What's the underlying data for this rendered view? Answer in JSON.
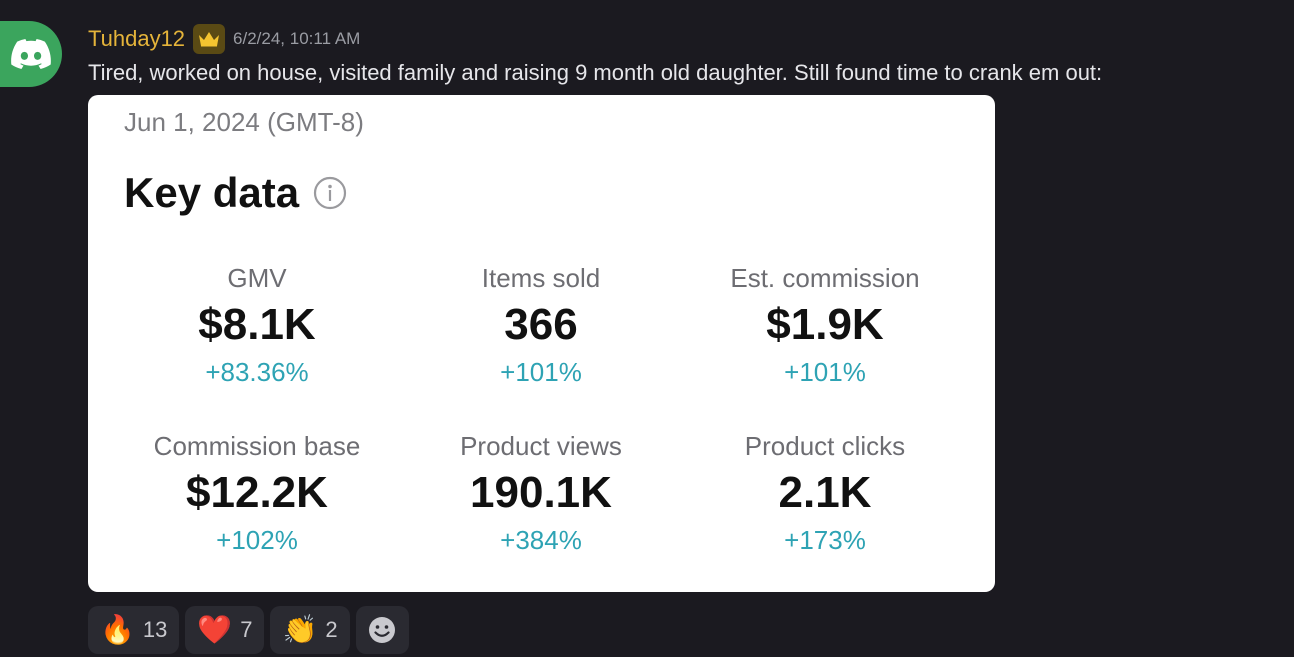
{
  "message": {
    "avatar_icon": "discord-logo-icon",
    "username": "Tuhday12",
    "role_icon": "crown-icon",
    "timestamp": "6/2/24, 10:11 AM",
    "text": "Tired, worked on house, visited family and raising 9 month old daughter. Still found time to crank em out:"
  },
  "card": {
    "date": "Jun 1, 2024 (GMT-8)",
    "title": "Key data",
    "info_icon": "info-icon",
    "metrics": [
      {
        "label": "GMV",
        "value": "$8.1K",
        "delta": "+83.36%"
      },
      {
        "label": "Items sold",
        "value": "366",
        "delta": "+101%"
      },
      {
        "label": "Est. commission",
        "value": "$1.9K",
        "delta": "+101%"
      },
      {
        "label": "Commission base",
        "value": "$12.2K",
        "delta": "+102%"
      },
      {
        "label": "Product views",
        "value": "190.1K",
        "delta": "+384%"
      },
      {
        "label": "Product clicks",
        "value": "2.1K",
        "delta": "+173%"
      }
    ],
    "colors": {
      "delta": "#2ea3b4"
    }
  },
  "reactions": [
    {
      "emoji": "🔥",
      "icon": "fire-emoji",
      "count": "13"
    },
    {
      "emoji": "❤️",
      "icon": "heart-emoji",
      "count": "7"
    },
    {
      "emoji": "👏",
      "icon": "clap-emoji",
      "count": "2"
    }
  ],
  "add_reaction_icon": "smiley-add-reaction-icon",
  "colors": {
    "background": "#1b1a20",
    "username": "#e5b43a",
    "avatar_bg": "#3ba55d"
  }
}
